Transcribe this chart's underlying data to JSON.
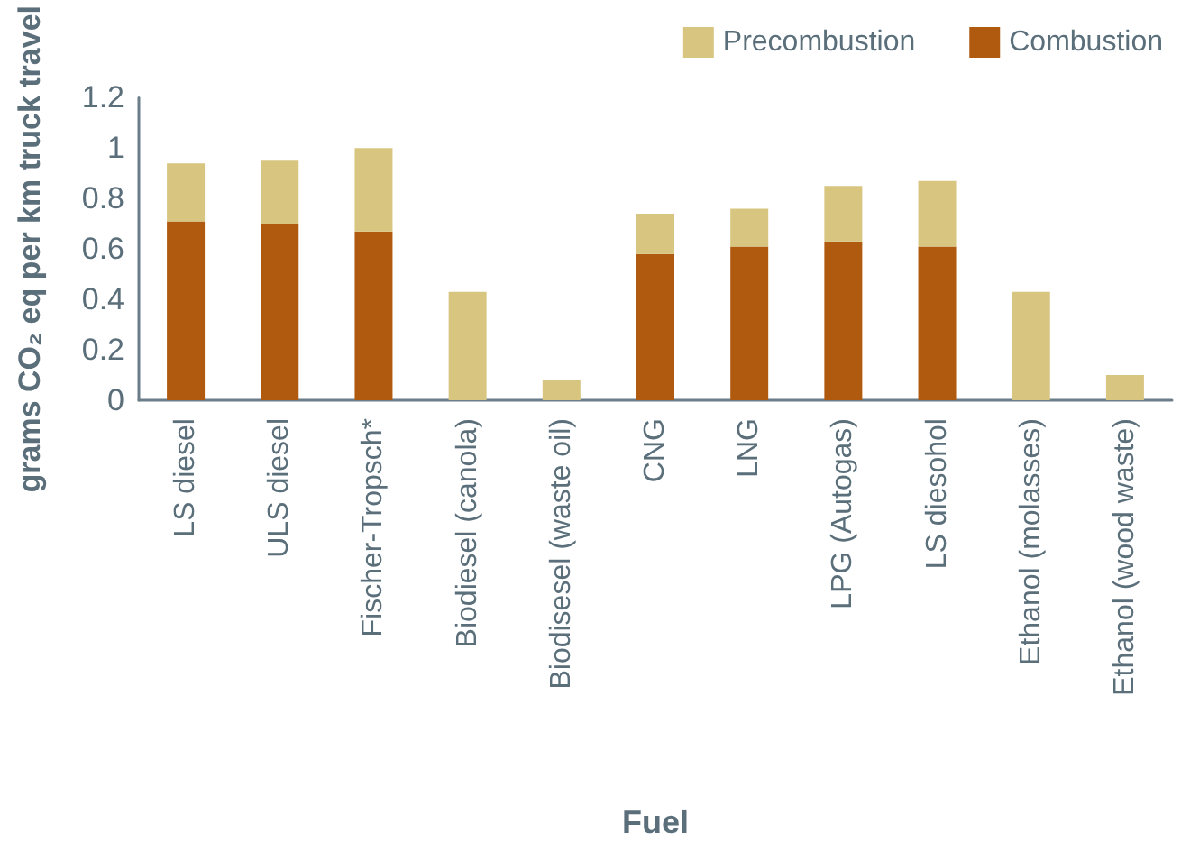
{
  "chart_data": {
    "type": "bar",
    "stacked": true,
    "xlabel": "Fuel",
    "ylabel": "grams CO₂ eq per km truck travel",
    "categories": [
      "LS diesel",
      "ULS diesel",
      "Fischer-Tropsch*",
      "Biodiesel (canola)",
      "Biodisesel (waste oil)",
      "CNG",
      "LNG",
      "LPG (Autogas)",
      "LS diesohol",
      "Ethanol (molasses)",
      "Ethanol (wood waste)"
    ],
    "series": [
      {
        "name": "Combustion",
        "color": "#b05a10",
        "values": [
          0.71,
          0.7,
          0.67,
          0,
          0,
          0.58,
          0.61,
          0.63,
          0.61,
          0,
          0
        ]
      },
      {
        "name": "Precombustion",
        "color": "#d8c680",
        "values": [
          0.23,
          0.25,
          0.33,
          0.43,
          0.08,
          0.16,
          0.15,
          0.22,
          0.26,
          0.43,
          0.1
        ]
      }
    ],
    "ylim": [
      0,
      1.2
    ],
    "yticks": [
      0,
      0.2,
      0.4,
      0.6,
      0.8,
      1,
      1.2
    ],
    "grid": false,
    "legend": "top right"
  }
}
